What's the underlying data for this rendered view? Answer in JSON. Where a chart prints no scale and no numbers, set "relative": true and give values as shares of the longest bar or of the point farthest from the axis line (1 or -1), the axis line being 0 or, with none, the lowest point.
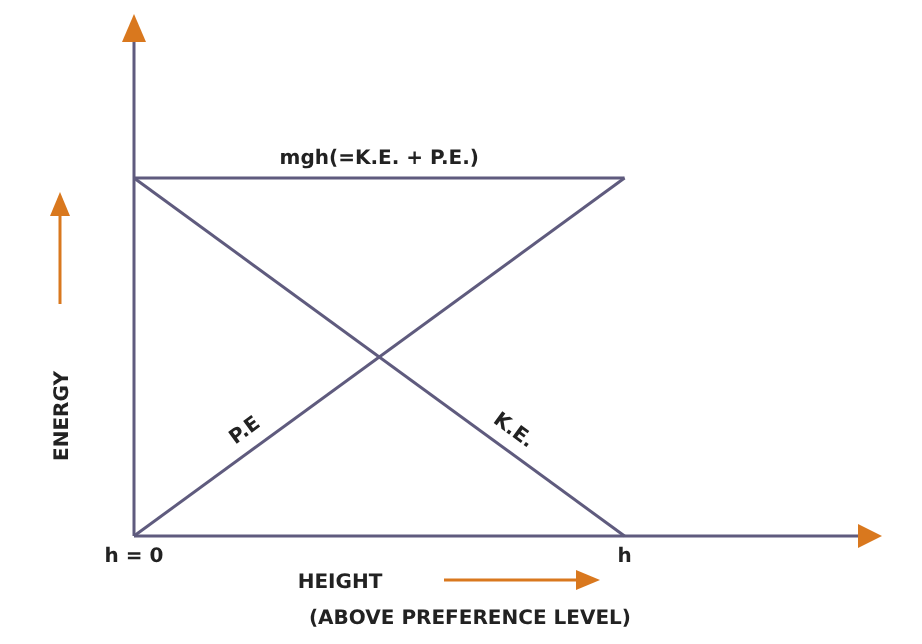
{
  "chart_data": {
    "type": "line",
    "relative": true,
    "xlabel": "HEIGHT",
    "ylabel": "ENERGY",
    "annotations": [
      "(ABOVE PREFERENCE LEVEL)"
    ],
    "categories": [
      "h = 0",
      "h"
    ],
    "series": [
      {
        "name": "mgh(=K.E. + P.E.)",
        "color": "#5f5b7e",
        "values": [
          1,
          1
        ]
      },
      {
        "name": "P.E",
        "color": "#5f5b7e",
        "values": [
          0,
          1
        ]
      },
      {
        "name": "K.E.",
        "color": "#5f5b7e",
        "values": [
          1,
          0
        ]
      }
    ],
    "marker": "none",
    "line_style": "solid",
    "legend": false,
    "grid": false,
    "tick_labels": "x"
  }
}
